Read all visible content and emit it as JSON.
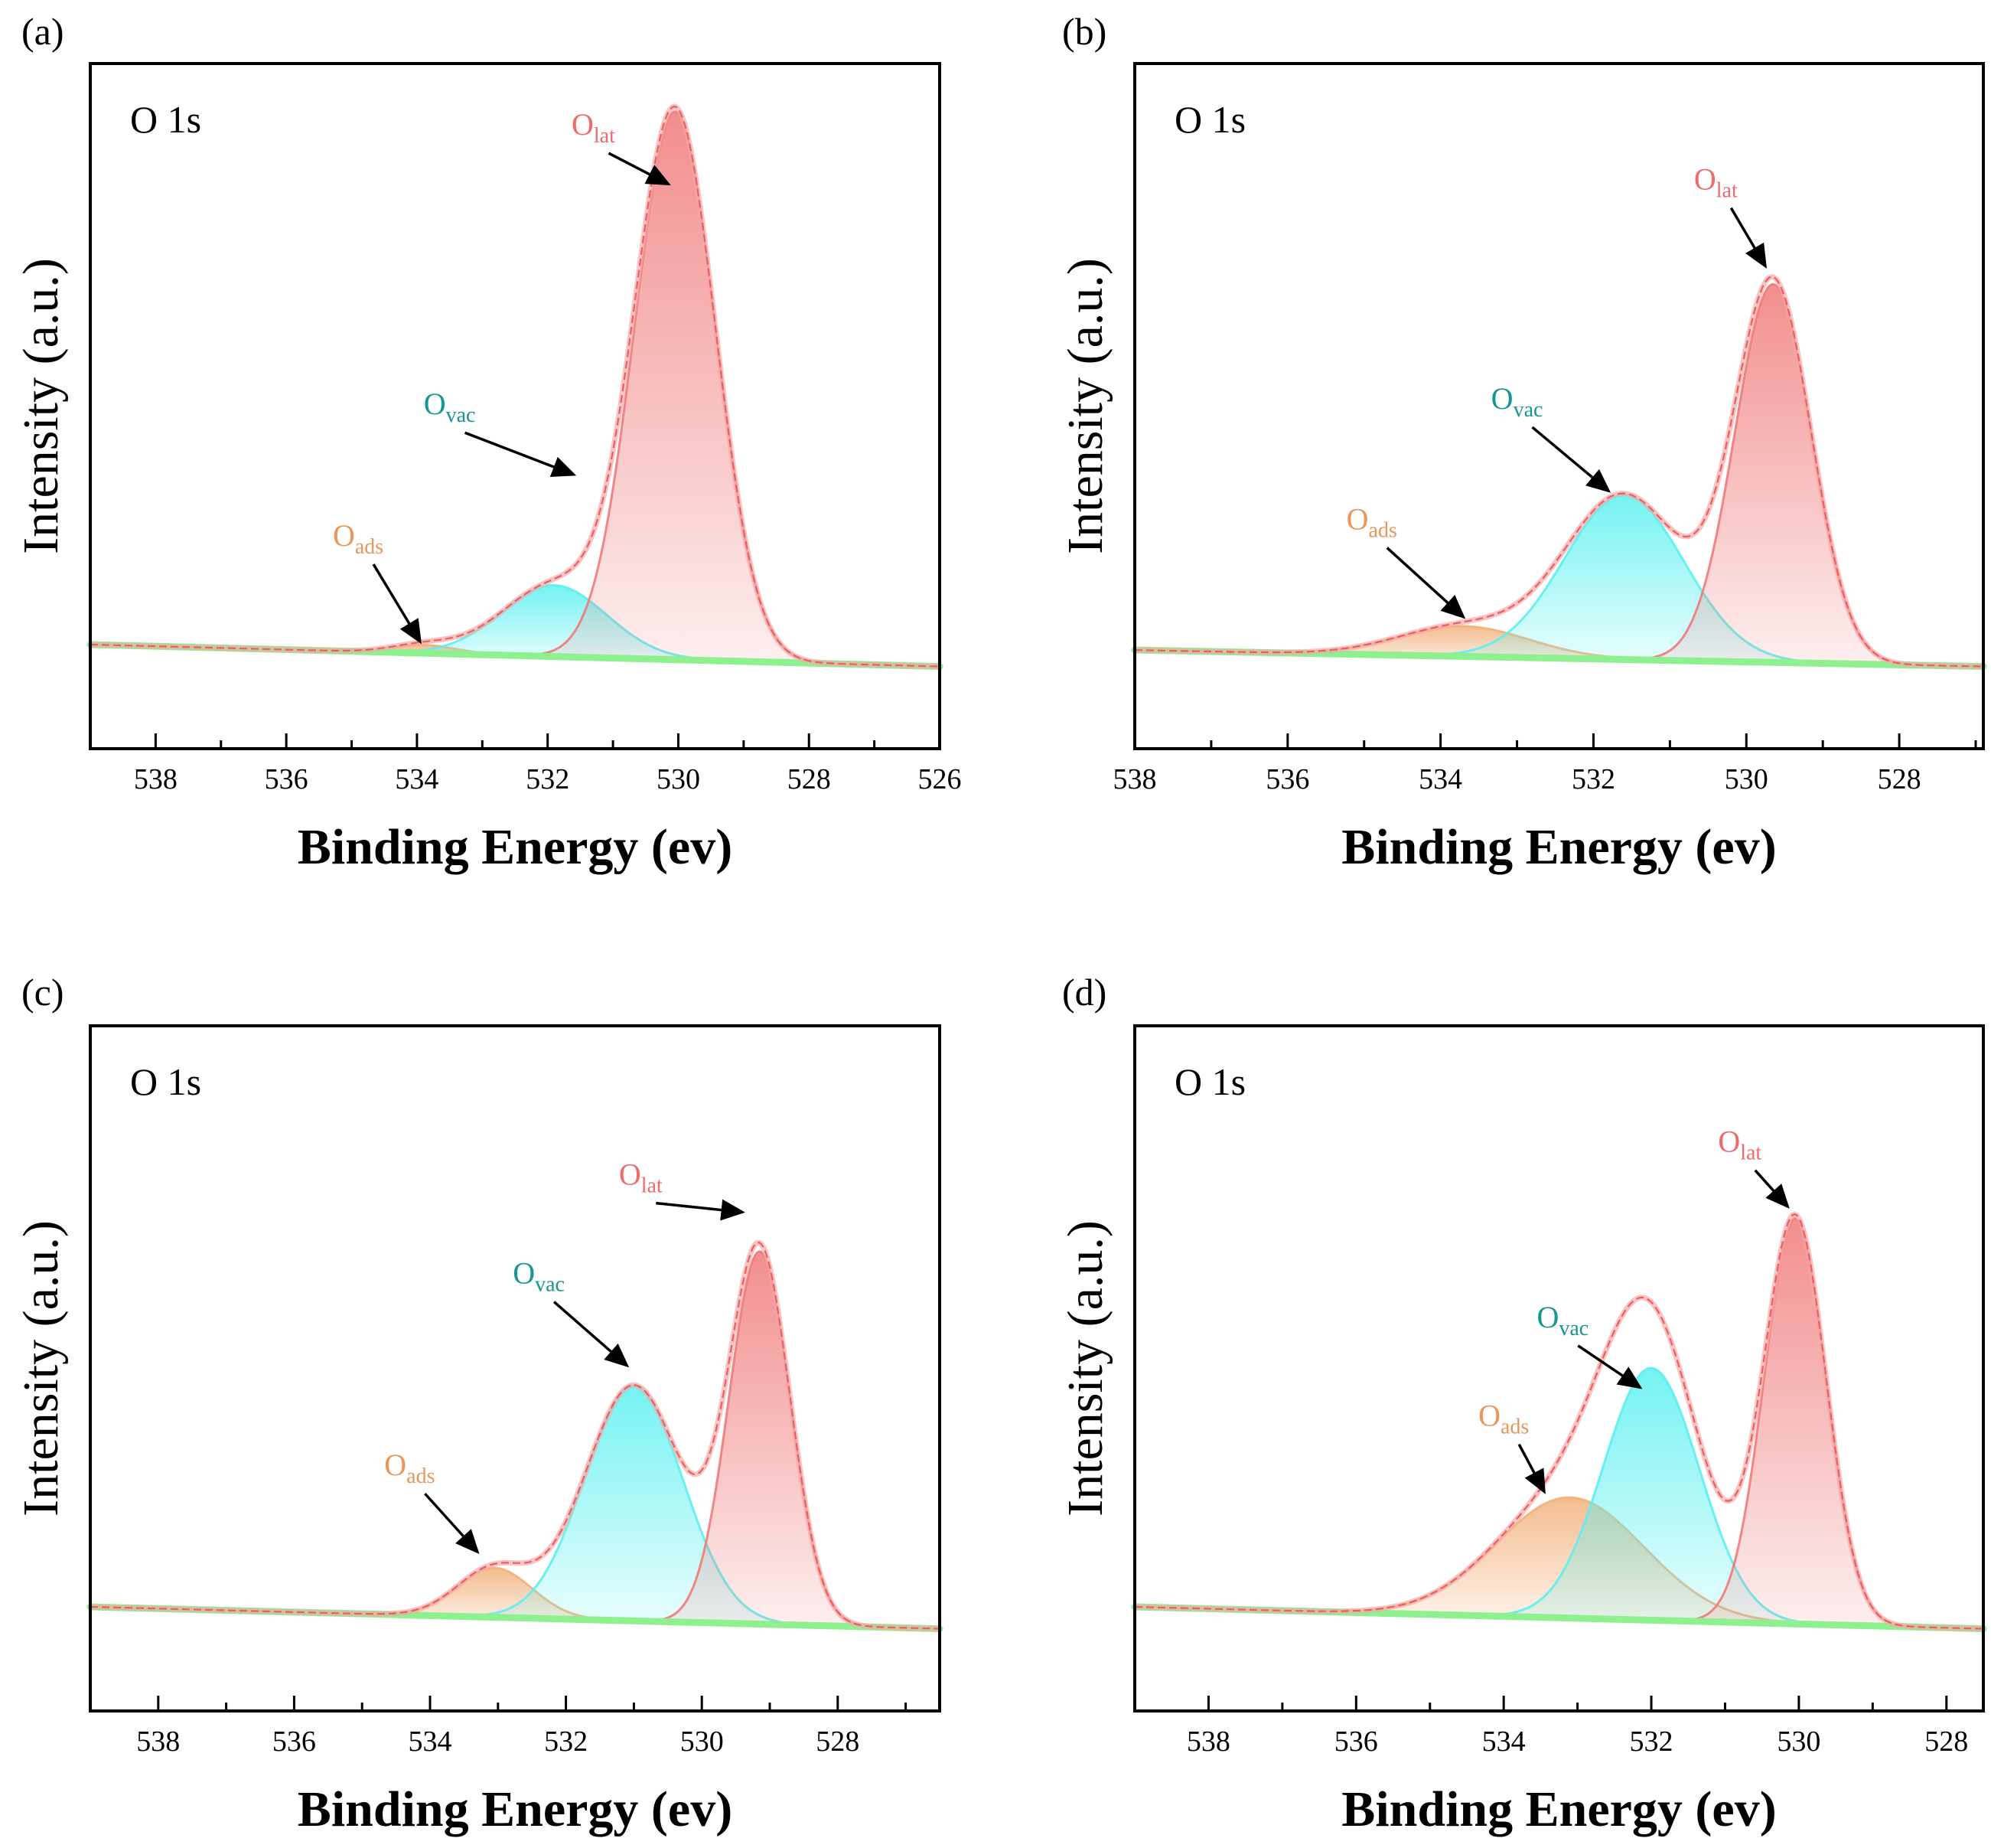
{
  "chart_data": [
    {
      "type": "area",
      "panel": "(a)",
      "annotation": "O 1s",
      "xlabel": "Binding Energy (ev)",
      "ylabel": "Intensity (a.u.)",
      "xlim": [
        539,
        526
      ],
      "xticks": [
        538,
        536,
        534,
        532,
        530,
        528,
        526
      ],
      "ylim": [
        -0.15,
        1.1
      ],
      "baseline": [
        {
          "x": 539,
          "y": 0.04
        },
        {
          "x": 526,
          "y": 0.0
        }
      ],
      "components": [
        {
          "name": "O_ads",
          "label": "O",
          "sub": "ads",
          "center": 533.9,
          "height": 0.015,
          "sigma": 0.5,
          "color": "#f2b07a"
        },
        {
          "name": "O_vac",
          "label": "O",
          "sub": "vac",
          "center": 531.9,
          "height": 0.13,
          "sigma": 0.8,
          "color": "#5cf0f0"
        },
        {
          "name": "O_lat",
          "label": "O",
          "sub": "lat",
          "center": 530.05,
          "height": 1.0,
          "sigma": 0.62,
          "color": "#f07a7a"
        }
      ],
      "arrows": [
        {
          "target": "O_ads",
          "label_x": 534.9,
          "label_y": 0.22,
          "tip_x": 533.95,
          "tip_y": 0.045
        },
        {
          "target": "O_vac",
          "label_x": 533.5,
          "label_y": 0.46,
          "tip_x": 531.6,
          "tip_y": 0.35
        },
        {
          "target": "O_lat",
          "label_x": 531.3,
          "label_y": 0.97,
          "tip_x": 530.15,
          "tip_y": 0.88
        }
      ]
    },
    {
      "type": "area",
      "panel": "(b)",
      "annotation": "O 1s",
      "xlabel": "Binding Energy (ev)",
      "ylabel": "Intensity (a.u.)",
      "xlim": [
        538,
        526.9
      ],
      "xticks": [
        538,
        536,
        534,
        532,
        530,
        528
      ],
      "ylim": [
        -0.15,
        1.1
      ],
      "baseline": [
        {
          "x": 538,
          "y": 0.03
        },
        {
          "x": 526.9,
          "y": 0.0
        }
      ],
      "components": [
        {
          "name": "O_ads",
          "label": "O",
          "sub": "ads",
          "center": 533.7,
          "height": 0.055,
          "sigma": 0.85,
          "color": "#f2b07a"
        },
        {
          "name": "O_vac",
          "label": "O",
          "sub": "vac",
          "center": 531.6,
          "height": 0.3,
          "sigma": 0.78,
          "color": "#5cf0f0"
        },
        {
          "name": "O_lat",
          "label": "O",
          "sub": "lat",
          "center": 529.65,
          "height": 0.69,
          "sigma": 0.5,
          "color": "#f07a7a"
        }
      ],
      "arrows": [
        {
          "target": "O_ads",
          "label_x": 534.9,
          "label_y": 0.25,
          "tip_x": 533.7,
          "tip_y": 0.09
        },
        {
          "target": "O_vac",
          "label_x": 533.0,
          "label_y": 0.47,
          "tip_x": 531.8,
          "tip_y": 0.32
        },
        {
          "target": "O_lat",
          "label_x": 530.4,
          "label_y": 0.87,
          "tip_x": 529.75,
          "tip_y": 0.73
        }
      ]
    },
    {
      "type": "area",
      "panel": "(c)",
      "annotation": "O 1s",
      "xlabel": "Binding Energy (ev)",
      "ylabel": "Intensity (a.u.)",
      "xlim": [
        539,
        526.5
      ],
      "xticks": [
        538,
        536,
        534,
        532,
        530,
        528
      ],
      "ylim": [
        -0.15,
        1.1
      ],
      "baseline": [
        {
          "x": 539,
          "y": 0.04
        },
        {
          "x": 526.5,
          "y": 0.0
        }
      ],
      "components": [
        {
          "name": "O_ads",
          "label": "O",
          "sub": "ads",
          "center": 533.05,
          "height": 0.09,
          "sigma": 0.55,
          "color": "#f2b07a"
        },
        {
          "name": "O_vac",
          "label": "O",
          "sub": "vac",
          "center": 531.0,
          "height": 0.43,
          "sigma": 0.72,
          "color": "#5cf0f0"
        },
        {
          "name": "O_lat",
          "label": "O",
          "sub": "lat",
          "center": 529.15,
          "height": 0.68,
          "sigma": 0.45,
          "color": "#f07a7a"
        }
      ],
      "arrows": [
        {
          "target": "O_ads",
          "label_x": 534.3,
          "label_y": 0.28,
          "tip_x": 533.3,
          "tip_y": 0.14
        },
        {
          "target": "O_vac",
          "label_x": 532.4,
          "label_y": 0.63,
          "tip_x": 531.1,
          "tip_y": 0.48
        },
        {
          "target": "O_lat",
          "label_x": 530.9,
          "label_y": 0.81,
          "tip_x": 529.4,
          "tip_y": 0.76
        }
      ]
    },
    {
      "type": "area",
      "panel": "(d)",
      "annotation": "O 1s",
      "xlabel": "Binding Energy (ev)",
      "ylabel": "Intensity (a.u.)",
      "xlim": [
        539,
        527.5
      ],
      "xticks": [
        538,
        536,
        534,
        532,
        530,
        528
      ],
      "ylim": [
        -0.15,
        1.1
      ],
      "baseline": [
        {
          "x": 539,
          "y": 0.04
        },
        {
          "x": 527.5,
          "y": 0.0
        }
      ],
      "components": [
        {
          "name": "O_ads",
          "label": "O",
          "sub": "ads",
          "center": 533.1,
          "height": 0.22,
          "sigma": 1.0,
          "color": "#f2b07a"
        },
        {
          "name": "O_vac",
          "label": "O",
          "sub": "vac",
          "center": 532.0,
          "height": 0.46,
          "sigma": 0.65,
          "color": "#5cf0f0"
        },
        {
          "name": "O_lat",
          "label": "O",
          "sub": "lat",
          "center": 530.05,
          "height": 0.74,
          "sigma": 0.42,
          "color": "#f07a7a"
        }
      ],
      "arrows": [
        {
          "target": "O_ads",
          "label_x": 534.0,
          "label_y": 0.37,
          "tip_x": 533.45,
          "tip_y": 0.25
        },
        {
          "target": "O_vac",
          "label_x": 533.2,
          "label_y": 0.55,
          "tip_x": 532.15,
          "tip_y": 0.44
        },
        {
          "target": "O_lat",
          "label_x": 530.8,
          "label_y": 0.87,
          "tip_x": 530.15,
          "tip_y": 0.77
        }
      ]
    }
  ]
}
